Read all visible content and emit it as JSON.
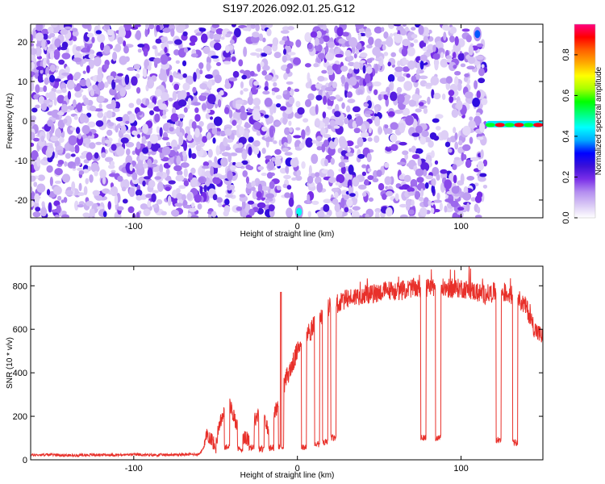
{
  "title": "S197.2026.092.01.25.G12",
  "chart_data": [
    {
      "type": "heatmap",
      "title": "S197.2026.092.01.25.G12",
      "xlabel": "Height of straight line (km)",
      "ylabel": "Frequency (Hz)",
      "xlim": [
        -163,
        150
      ],
      "ylim": [
        -24.5,
        24.5
      ],
      "xticks": [
        -100,
        0,
        100
      ],
      "xtick_labels": [
        "-100",
        "0",
        "100"
      ],
      "yticks": [
        20,
        10,
        0,
        -10,
        -20
      ],
      "ytick_labels": [
        "20",
        "10",
        "0",
        "-10",
        "-20"
      ],
      "colorbar": {
        "label": "Normalized spectral amplitude",
        "range": [
          0,
          0.95
        ],
        "ticks": [
          0.0,
          0.2,
          0.4,
          0.6,
          0.8
        ],
        "tick_labels": [
          "0.0",
          "0.2",
          "0.4",
          "0.6",
          "0.8"
        ],
        "colormap": [
          "#ffffff",
          "#d9c8f5",
          "#b48ef0",
          "#7a2fe8",
          "#3a10d8",
          "#0000ff",
          "#00aaff",
          "#00ffff",
          "#00ff80",
          "#00ff00",
          "#aaff00",
          "#ffff00",
          "#ffaa00",
          "#ff6000",
          "#ff0000",
          "#ff0080"
        ]
      },
      "noise_region_km": [
        -163,
        115
      ],
      "strong_features": [
        {
          "x_km": 1,
          "freq_hz": -23,
          "amplitude": 0.45,
          "note": "bright blob at bottom near 0 km"
        },
        {
          "x_km": 110,
          "freq_hz": 22,
          "amplitude": 0.35,
          "note": "blob at top near 110 km"
        },
        {
          "x_km": [
            115,
            150
          ],
          "freq_hz": -1,
          "amplitude": 0.9,
          "note": "horizontal stripe near 0 Hz"
        }
      ],
      "vertical_gaps_km": [
        -10,
        -2,
        2,
        5,
        47,
        60,
        88,
        108
      ]
    },
    {
      "type": "line",
      "xlabel": "Height of straight line (km)",
      "ylabel": "SNR (10 * v/v)",
      "xlim": [
        -163,
        150
      ],
      "ylim": [
        0,
        890
      ],
      "xticks": [
        -100,
        0,
        100
      ],
      "xtick_labels": [
        "-100",
        "0",
        "100"
      ],
      "yticks": [
        0,
        200,
        400,
        600,
        800
      ],
      "ytick_labels": [
        "0",
        "200",
        "400",
        "600",
        "800"
      ],
      "series": [
        {
          "name": "SNR",
          "color": "#e8302a",
          "x": [
            -163,
            -150,
            -140,
            -130,
            -120,
            -110,
            -100,
            -90,
            -80,
            -70,
            -60,
            -57,
            -55,
            -52,
            -50,
            -48,
            -45,
            -42,
            -40,
            -38,
            -35,
            -30,
            -28,
            -25,
            -22,
            -20,
            -18,
            -15,
            -12,
            -10,
            -8,
            -6,
            -4,
            -2,
            0,
            2,
            4,
            6,
            8,
            10,
            12,
            15,
            18,
            20,
            22,
            25,
            30,
            35,
            40,
            45,
            50,
            55,
            60,
            65,
            70,
            75,
            80,
            85,
            90,
            95,
            100,
            105,
            110,
            115,
            120,
            125,
            130,
            135,
            140,
            145,
            150
          ],
          "y": [
            22,
            24,
            20,
            22,
            23,
            22,
            24,
            22,
            23,
            24,
            26,
            60,
            120,
            90,
            50,
            160,
            210,
            260,
            230,
            180,
            120,
            90,
            150,
            200,
            240,
            180,
            140,
            200,
            250,
            300,
            350,
            390,
            420,
            460,
            500,
            540,
            560,
            580,
            600,
            620,
            640,
            660,
            690,
            700,
            710,
            715,
            740,
            750,
            760,
            760,
            770,
            780,
            775,
            780,
            790,
            785,
            790,
            780,
            790,
            785,
            790,
            780,
            770,
            760,
            770,
            770,
            760,
            740,
            700,
            600,
            560
          ]
        }
      ],
      "drops": [
        {
          "x_km": -43,
          "y": 60
        },
        {
          "x_km": -35,
          "y": 50
        },
        {
          "x_km": -28,
          "y": 55
        },
        {
          "x_km": -22,
          "y": 50
        },
        {
          "x_km": -16,
          "y": 55
        },
        {
          "x_km": -10,
          "y": 60
        },
        {
          "x_km": 4,
          "y": 60
        },
        {
          "x_km": 12,
          "y": 70
        },
        {
          "x_km": 17,
          "y": 80
        },
        {
          "x_km": 22,
          "y": 100
        },
        {
          "x_km": 77,
          "y": 100
        },
        {
          "x_km": 86,
          "y": 100
        },
        {
          "x_km": 123,
          "y": 90
        },
        {
          "x_km": 133,
          "y": 80
        }
      ],
      "spikes": [
        {
          "x_km": -10,
          "y": 770
        },
        {
          "x_km": 8,
          "y": 550
        }
      ]
    }
  ]
}
